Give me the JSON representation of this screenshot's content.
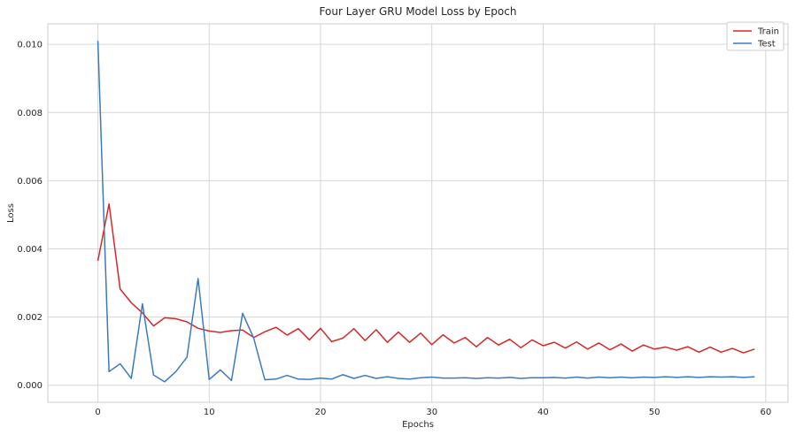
{
  "chart_data": {
    "type": "line",
    "title": "Four Layer GRU Model Loss by Epoch",
    "xlabel": "Epochs",
    "ylabel": "Loss",
    "xlim": [
      -4.5,
      62.0
    ],
    "ylim": [
      -0.0005,
      0.0106
    ],
    "xticks": [
      0,
      10,
      20,
      30,
      40,
      50,
      60
    ],
    "xtick_labels": [
      "0",
      "10",
      "20",
      "30",
      "40",
      "50",
      "60"
    ],
    "yticks": [
      0.0,
      0.002,
      0.004,
      0.006,
      0.008,
      0.01
    ],
    "ytick_labels": [
      "0.000",
      "0.002",
      "0.004",
      "0.006",
      "0.008",
      "0.010"
    ],
    "grid": true,
    "legend_position": "top-right",
    "x": [
      0,
      1,
      2,
      3,
      4,
      5,
      6,
      7,
      8,
      9,
      10,
      11,
      12,
      13,
      14,
      15,
      16,
      17,
      18,
      19,
      20,
      21,
      22,
      23,
      24,
      25,
      26,
      27,
      28,
      29,
      30,
      31,
      32,
      33,
      34,
      35,
      36,
      37,
      38,
      39,
      40,
      41,
      42,
      43,
      44,
      45,
      46,
      47,
      48,
      49,
      50,
      51,
      52,
      53,
      54,
      55,
      56,
      57,
      58,
      59
    ],
    "series": [
      {
        "name": "Train",
        "color": "#d62728",
        "values": [
          0.00365,
          0.00532,
          0.00282,
          0.00242,
          0.00212,
          0.00174,
          0.00198,
          0.00195,
          0.00186,
          0.00167,
          0.00159,
          0.00155,
          0.0016,
          0.00162,
          0.0014,
          0.00157,
          0.0017,
          0.00147,
          0.00166,
          0.00133,
          0.00167,
          0.00128,
          0.00138,
          0.00166,
          0.00131,
          0.00163,
          0.00126,
          0.00156,
          0.00126,
          0.00153,
          0.00119,
          0.00148,
          0.00124,
          0.0014,
          0.00113,
          0.0014,
          0.00118,
          0.00135,
          0.0011,
          0.00133,
          0.00116,
          0.00126,
          0.00109,
          0.00127,
          0.00106,
          0.00124,
          0.00104,
          0.00121,
          0.001,
          0.00118,
          0.00106,
          0.00112,
          0.00103,
          0.00113,
          0.00097,
          0.00112,
          0.00097,
          0.00108,
          0.00095,
          0.00106
        ]
      },
      {
        "name": "Test",
        "color": "#3a7bbf",
        "values": [
          0.0101,
          0.0004,
          0.00063,
          0.0002,
          0.00239,
          0.0003,
          0.0001,
          0.0004,
          0.00082,
          0.00313,
          0.00017,
          0.00045,
          0.00014,
          0.00211,
          0.00138,
          0.00016,
          0.00018,
          0.00029,
          0.00018,
          0.00017,
          0.00021,
          0.00018,
          0.00031,
          0.0002,
          0.00029,
          0.0002,
          0.00025,
          0.0002,
          0.00018,
          0.00022,
          0.00024,
          0.00021,
          0.00021,
          0.00022,
          0.0002,
          0.00022,
          0.00021,
          0.00023,
          0.0002,
          0.00022,
          0.00022,
          0.00023,
          0.00021,
          0.00024,
          0.00021,
          0.00024,
          0.00022,
          0.00024,
          0.00022,
          0.00024,
          0.00023,
          0.00025,
          0.00023,
          0.00025,
          0.00023,
          0.00025,
          0.00024,
          0.00025,
          0.00023,
          0.00025
        ]
      }
    ]
  }
}
